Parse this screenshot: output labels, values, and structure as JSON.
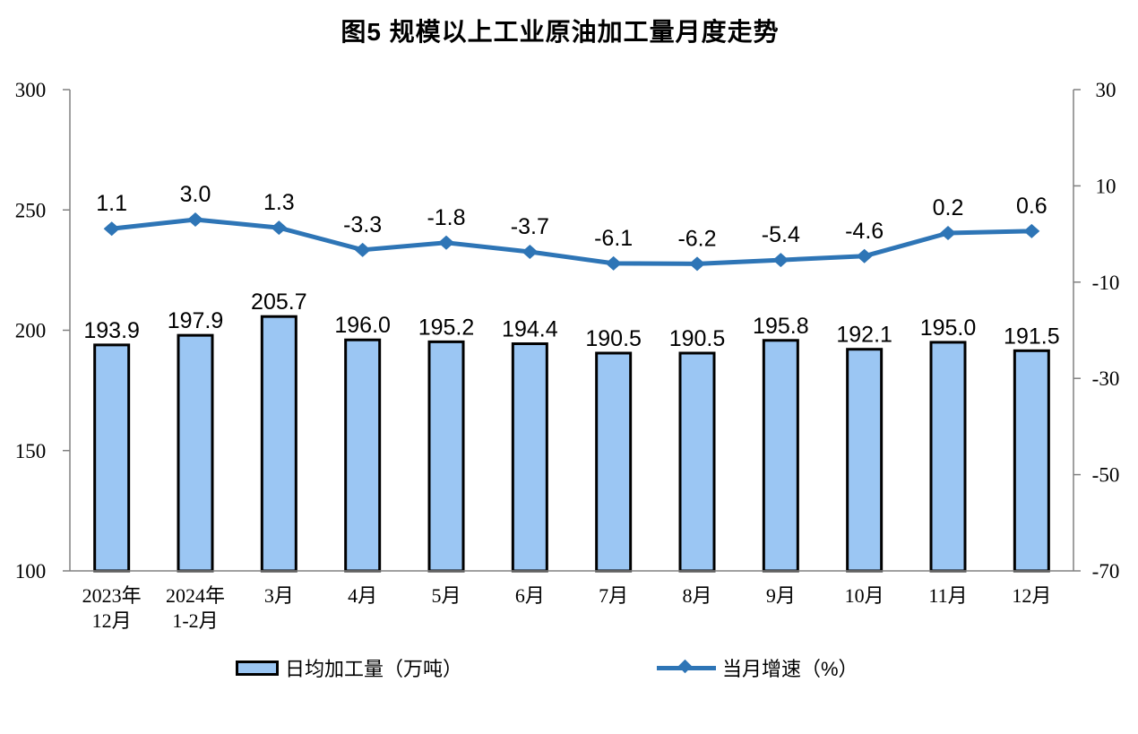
{
  "title": "图5  规模以上工业原油加工量月度走势",
  "legend": {
    "bar_label": "日均加工量（万吨）",
    "line_label": "当月增速（%）"
  },
  "colors": {
    "bar_fill": "#9BC6F3",
    "bar_border": "#000000",
    "line": "#2E75B6",
    "axis": "#808080",
    "text": "#000000"
  },
  "chart_data": {
    "type": "combo",
    "title": "图5  规模以上工业原油加工量月度走势",
    "categories": [
      [
        "2023年",
        "12月"
      ],
      [
        "2024年",
        "1-2月"
      ],
      [
        "3月"
      ],
      [
        "4月"
      ],
      [
        "5月"
      ],
      [
        "6月"
      ],
      [
        "7月"
      ],
      [
        "8月"
      ],
      [
        "9月"
      ],
      [
        "10月"
      ],
      [
        "11月"
      ],
      [
        "12月"
      ]
    ],
    "series": [
      {
        "name": "日均加工量（万吨）",
        "type": "bar",
        "axis": "left",
        "values": [
          193.9,
          197.9,
          205.7,
          196.0,
          195.2,
          194.4,
          190.5,
          190.5,
          195.8,
          192.1,
          195.0,
          191.5
        ]
      },
      {
        "name": "当月增速（%）",
        "type": "line",
        "axis": "right",
        "values": [
          1.1,
          3.0,
          1.3,
          -3.3,
          -1.8,
          -3.7,
          -6.1,
          -6.2,
          -5.4,
          -4.6,
          0.2,
          0.6
        ]
      }
    ],
    "left_axis": {
      "min": 100,
      "max": 300,
      "ticks": [
        300,
        250,
        200,
        150,
        100
      ]
    },
    "right_axis": {
      "min": -70,
      "max": 30,
      "ticks": [
        30,
        10,
        -10,
        -30,
        -50,
        -70
      ]
    },
    "grid": false,
    "legend_position": "bottom",
    "data_labels": true
  }
}
